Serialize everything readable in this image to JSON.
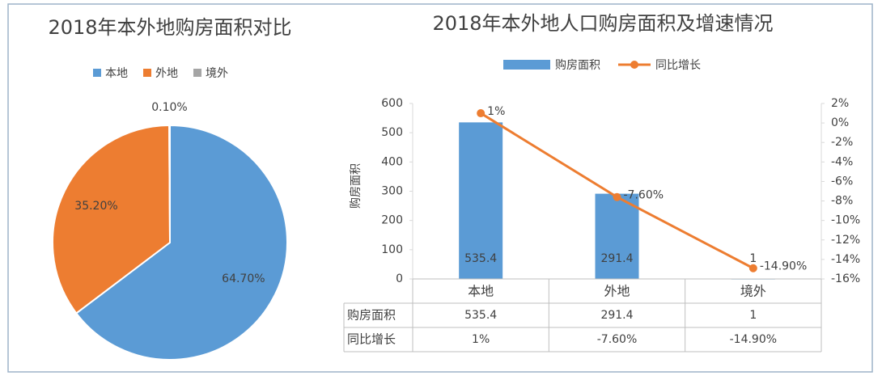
{
  "chart_data": [
    {
      "type": "pie",
      "title": "2018年本外地购房面积对比",
      "categories": [
        "本地",
        "外地",
        "境外"
      ],
      "values": [
        64.7,
        35.2,
        0.1
      ],
      "value_labels": [
        "64.70%",
        "35.20%",
        "0.10%"
      ],
      "colors": [
        "#5b9bd5",
        "#ed7d31",
        "#a5a5a5"
      ],
      "legend": "top"
    },
    {
      "type": "combo",
      "title": "2018年本外地人口购房面积及增速情况",
      "categories": [
        "本地",
        "外地",
        "境外"
      ],
      "ylabel": "购房面积",
      "series": [
        {
          "name": "购房面积",
          "type": "bar",
          "color": "#5b9bd5",
          "values": [
            535.4,
            291.4,
            1
          ]
        },
        {
          "name": "同比增长",
          "type": "line",
          "color": "#ed7d31",
          "axis": "y2",
          "values": [
            1,
            -7.6,
            -14.9
          ],
          "value_labels": [
            "1%",
            "-7.60%",
            "-14.90%"
          ]
        }
      ],
      "ylim": [
        0,
        600
      ],
      "yticks": [
        0,
        100,
        200,
        300,
        400,
        500,
        600
      ],
      "y2lim": [
        -16,
        2
      ],
      "y2ticks": [
        {
          "value": 2,
          "label": "2%"
        },
        {
          "value": 0,
          "label": "0%"
        },
        {
          "value": -2,
          "label": "-2%"
        },
        {
          "value": -4,
          "label": "-4%"
        },
        {
          "value": -6,
          "label": "-6%"
        },
        {
          "value": -8,
          "label": "-8%"
        },
        {
          "value": -10,
          "label": "-10%"
        },
        {
          "value": -12,
          "label": "-12%"
        },
        {
          "value": -14,
          "label": "-14%"
        },
        {
          "value": -16,
          "label": "-16%"
        }
      ],
      "legend": "top",
      "data_table": true
    }
  ]
}
